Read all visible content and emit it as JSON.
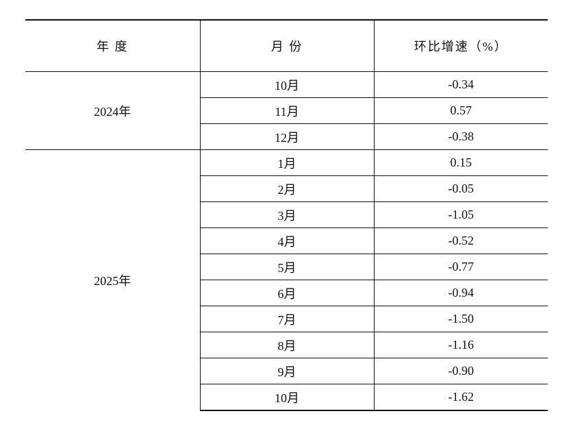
{
  "table": {
    "header": [
      "年 度",
      "月 份",
      "环比增速（%）"
    ],
    "groups": [
      {
        "year": "2024年",
        "rows": [
          [
            "10月",
            "-0.34"
          ],
          [
            "11月",
            "0.57"
          ],
          [
            "12月",
            "-0.38"
          ]
        ]
      },
      {
        "year": "2025年",
        "rows": [
          [
            "1月",
            "0.15"
          ],
          [
            "2月",
            "-0.05"
          ],
          [
            "3月",
            "-1.05"
          ],
          [
            "4月",
            "-0.52"
          ],
          [
            "5月",
            "-0.77"
          ],
          [
            "6月",
            "-0.94"
          ],
          [
            "7月",
            "-1.50"
          ],
          [
            "8月",
            "-1.16"
          ],
          [
            "9月",
            "-0.90"
          ],
          [
            "10月",
            "-1.62"
          ]
        ]
      }
    ]
  }
}
